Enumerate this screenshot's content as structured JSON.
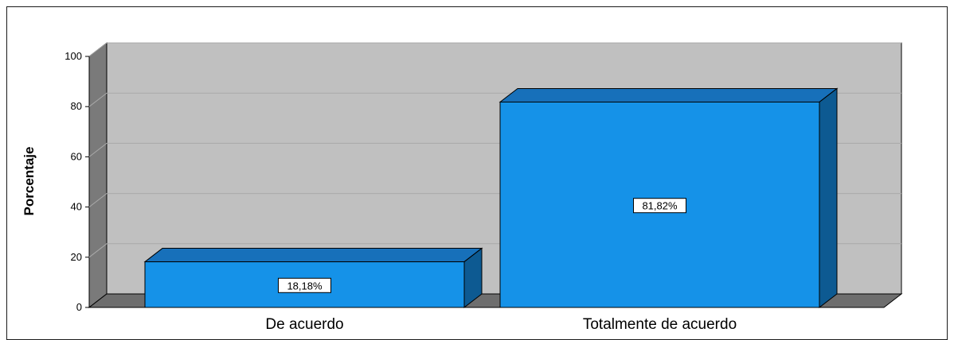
{
  "chart_data": {
    "type": "bar",
    "title": "",
    "xlabel": "",
    "ylabel": "Porcentaje",
    "categories": [
      "De acuerdo",
      "Totalmente de acuerdo"
    ],
    "values": [
      18.18,
      81.82
    ],
    "data_labels": [
      "18,18%",
      "81,82%"
    ],
    "ylim": [
      0,
      100
    ],
    "yticks": [
      "0",
      "20",
      "40",
      "60",
      "80",
      "100"
    ],
    "grid": true,
    "legend": "none",
    "style": "3d"
  },
  "colors": {
    "bar_front": "#1592e8",
    "bar_top": "#1770ba",
    "bar_side": "#0d5a92",
    "plot_back": "#c0c0c0",
    "plot_side": "#7a7a7a",
    "floor": "#6e6e6e",
    "grid": "#a9a9a9"
  }
}
